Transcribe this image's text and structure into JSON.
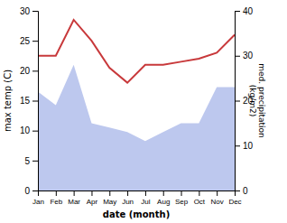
{
  "chart_data": {
    "type": "line",
    "categories": [
      "Jan",
      "Feb",
      "Mar",
      "Apr",
      "May",
      "Jun",
      "Jul",
      "Aug",
      "Sep",
      "Oct",
      "Nov",
      "Dec"
    ],
    "series": [
      {
        "type": "area",
        "axis": "y2",
        "color": "#bdc8ee",
        "values": [
          22,
          19,
          28,
          15,
          14,
          13,
          11,
          13,
          15,
          15,
          23,
          23
        ]
      },
      {
        "type": "line",
        "color": "#c8393b",
        "values": [
          22.5,
          22.5,
          28.5,
          25.0,
          20.5,
          18.0,
          21.0,
          21.0,
          21.5,
          22.0,
          23.0,
          26.0
        ]
      }
    ],
    "ylim": [
      0,
      30
    ],
    "yticks": [
      0,
      5,
      10,
      15,
      20,
      25,
      30
    ],
    "y2lim": [
      0,
      40
    ],
    "y2ticks": [
      0,
      10,
      20,
      30,
      40
    ],
    "x_label": "date (month)",
    "y_label": "max temp (C)",
    "y2_label": "med. precipitation\n(kg/m2)",
    "grid": false
  }
}
